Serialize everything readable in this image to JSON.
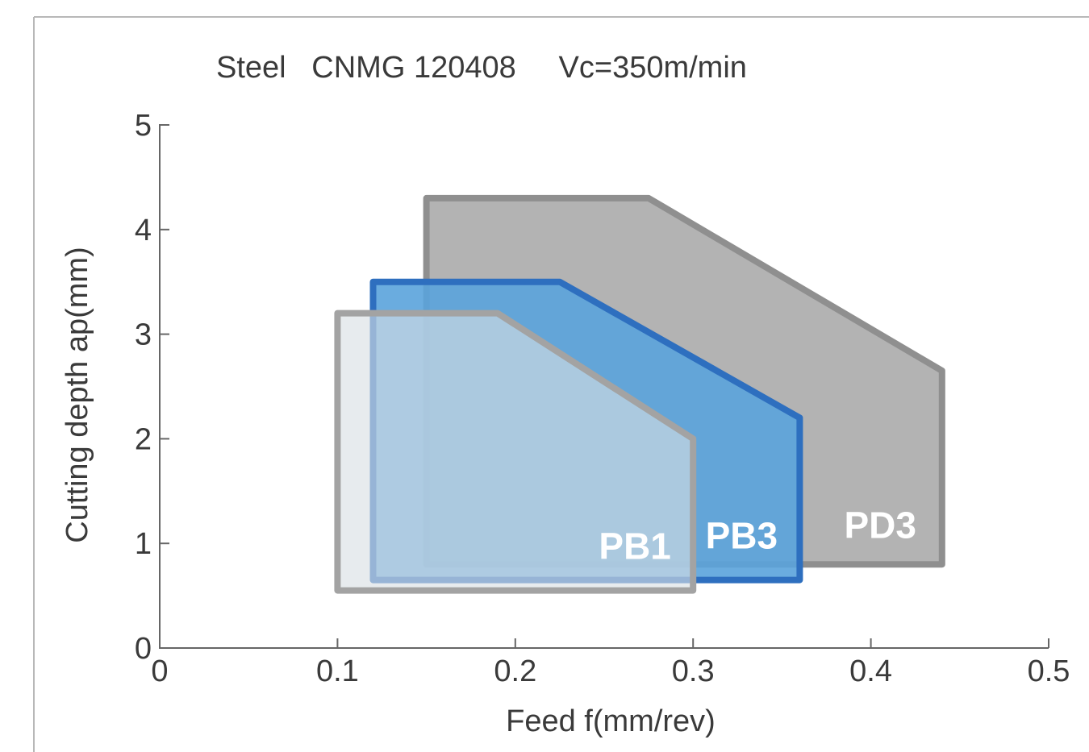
{
  "chart_data": {
    "type": "area",
    "title": "Steel   CNMG 120408     Vc=350m/min",
    "xlabel": "Feed f(mm/rev)",
    "ylabel": "Cutting depth ap(mm)",
    "xlim": [
      0,
      0.5
    ],
    "ylim": [
      0,
      5
    ],
    "xticks": [
      "0",
      "0.1",
      "0.2",
      "0.3",
      "0.4",
      "0.5"
    ],
    "yticks": [
      "0",
      "1",
      "2",
      "3",
      "4",
      "5"
    ],
    "grid": false,
    "series": [
      {
        "name": "PD3",
        "fill": "#b3b3b3",
        "stroke": "#8f8f8f",
        "fill_opacity": 1,
        "points": [
          [
            0.15,
            0.8
          ],
          [
            0.15,
            4.3
          ],
          [
            0.275,
            4.3
          ],
          [
            0.44,
            2.65
          ],
          [
            0.44,
            0.8
          ]
        ]
      },
      {
        "name": "PB3",
        "fill": "#5aa3dc",
        "stroke": "#2e6fbf",
        "fill_opacity": 0.9,
        "points": [
          [
            0.12,
            0.65
          ],
          [
            0.12,
            3.5
          ],
          [
            0.225,
            3.5
          ],
          [
            0.36,
            2.2
          ],
          [
            0.36,
            0.65
          ]
        ]
      },
      {
        "name": "PB1",
        "fill": "#d9dee3",
        "stroke": "#a3a3a3",
        "fill_opacity": 0.62,
        "points": [
          [
            0.1,
            0.55
          ],
          [
            0.1,
            3.2
          ],
          [
            0.19,
            3.2
          ],
          [
            0.3,
            2.0
          ],
          [
            0.3,
            0.55
          ]
        ]
      }
    ],
    "labels": [
      {
        "text": "PB1",
        "x": 0.247,
        "y": 0.85
      },
      {
        "text": "PB3",
        "x": 0.307,
        "y": 0.95
      },
      {
        "text": "PD3",
        "x": 0.385,
        "y": 1.05
      }
    ]
  }
}
